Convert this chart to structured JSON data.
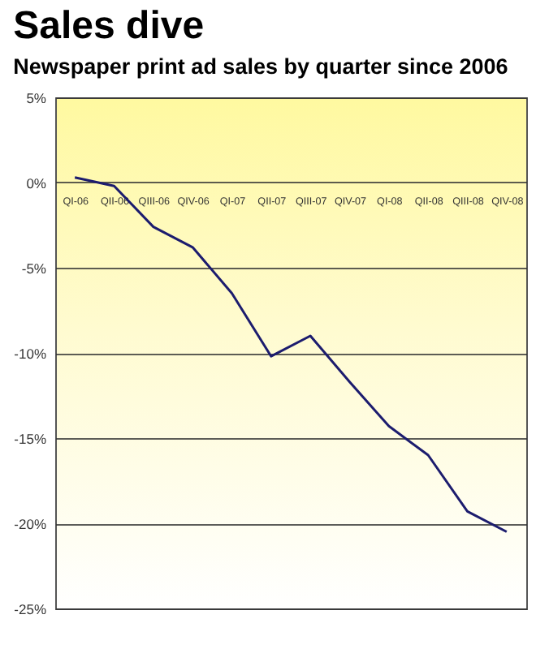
{
  "chart_data": {
    "type": "line",
    "title": "Sales dive",
    "subtitle": "Newspaper print ad sales by quarter since 2006",
    "categories": [
      "QI-06",
      "QII-06",
      "QIII-06",
      "QIV-06",
      "QI-07",
      "QII-07",
      "QIII-07",
      "QIV-07",
      "QI-08",
      "QII-08",
      "QIII-08",
      "QIV-08"
    ],
    "series": [
      {
        "color": "#1c1c6e",
        "values": [
          0.3,
          -0.2,
          -2.6,
          -3.8,
          -6.5,
          -10.2,
          -9.0,
          -11.7,
          -14.3,
          -16.0,
          -19.3,
          -20.5
        ]
      }
    ],
    "ylim": [
      -25,
      5
    ],
    "yticks": [
      {
        "value": 5,
        "label": "5%"
      },
      {
        "value": 0,
        "label": "0%"
      },
      {
        "value": -5,
        "label": "-5%"
      },
      {
        "value": -10,
        "label": "-10%"
      },
      {
        "value": -15,
        "label": "-15%"
      },
      {
        "value": -20,
        "label": "-20%"
      },
      {
        "value": -25,
        "label": "-25%"
      }
    ],
    "grid": "y",
    "legend": false,
    "marker": "none",
    "line_style": "solid"
  }
}
